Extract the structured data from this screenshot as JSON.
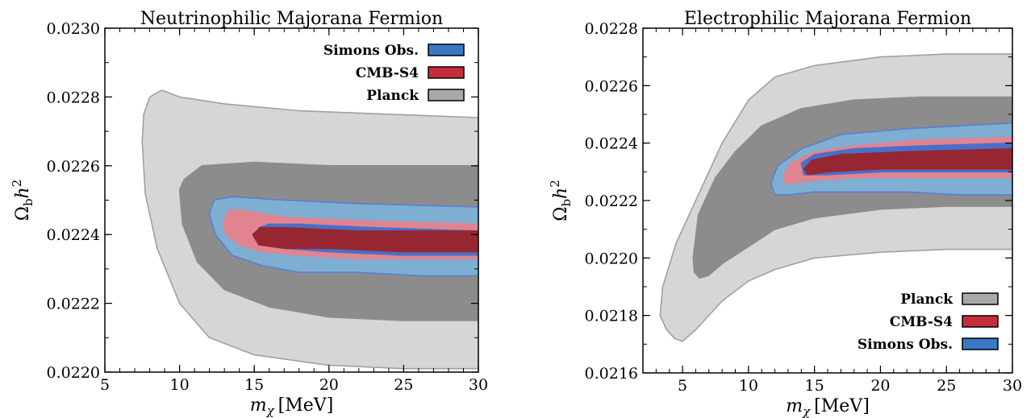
{
  "chart_data": [
    {
      "type": "contour",
      "title": "Neutrinophilic Majorana Fermion",
      "xlabel_var": "m",
      "xlabel_sub": "χ",
      "xlabel_unit": "[MeV]",
      "ylabel_main": "Ω",
      "ylabel_sub": "b",
      "ylabel_h": "h",
      "ylabel_sup": "2",
      "xlim": [
        5,
        30
      ],
      "ylim": [
        0.022,
        0.023
      ],
      "xticks": [
        5,
        10,
        15,
        20,
        25,
        30
      ],
      "xtick_labels": [
        "5",
        "10",
        "15",
        "20",
        "25",
        "30"
      ],
      "yticks": [
        0.022,
        0.0222,
        0.0224,
        0.0226,
        0.0228,
        0.023
      ],
      "ytick_labels": [
        "0.0220",
        "0.0222",
        "0.0224",
        "0.0226",
        "0.0228",
        "0.0230"
      ],
      "legend_position": "top-right",
      "legend": [
        {
          "label": "Simons Obs.",
          "color": "#3a78c2"
        },
        {
          "label": "CMB-S4",
          "color": "#c42d3a"
        },
        {
          "label": "Planck",
          "color": "#a8a8a8"
        }
      ],
      "contours": [
        {
          "series": "Planck",
          "level": "95%",
          "fill": "#d6d6d6",
          "stroke": "#a0a0a0",
          "points": [
            [
              7.5,
              0.02267
            ],
            [
              7.6,
              0.02275
            ],
            [
              8.0,
              0.0228
            ],
            [
              8.8,
              0.02282
            ],
            [
              10,
              0.0228
            ],
            [
              13,
              0.02278
            ],
            [
              18,
              0.02276
            ],
            [
              24,
              0.02275
            ],
            [
              30,
              0.02274
            ],
            [
              30,
              0.02201
            ],
            [
              25,
              0.02201
            ],
            [
              20,
              0.02202
            ],
            [
              15,
              0.02205
            ],
            [
              12,
              0.0221
            ],
            [
              10,
              0.0222
            ],
            [
              8.5,
              0.02236
            ],
            [
              7.7,
              0.02252
            ]
          ]
        },
        {
          "series": "Planck",
          "level": "68%",
          "fill": "#8c8c8c",
          "stroke": "#8c8c8c",
          "points": [
            [
              10.0,
              0.02253
            ],
            [
              10.3,
              0.02256
            ],
            [
              11.5,
              0.0226
            ],
            [
              15,
              0.02261
            ],
            [
              20,
              0.0226
            ],
            [
              25,
              0.0226
            ],
            [
              30,
              0.0226
            ],
            [
              30,
              0.02215
            ],
            [
              25,
              0.02215
            ],
            [
              20,
              0.02216
            ],
            [
              16,
              0.02219
            ],
            [
              13,
              0.02224
            ],
            [
              11.2,
              0.02232
            ],
            [
              10.2,
              0.02243
            ]
          ]
        },
        {
          "series": "Simons Obs.",
          "level": "95%",
          "fill": "#7eafd2",
          "stroke": "#5a7fd0",
          "points": [
            [
              12.0,
              0.02246
            ],
            [
              12.3,
              0.0225
            ],
            [
              13.5,
              0.02251
            ],
            [
              17,
              0.0225
            ],
            [
              22,
              0.02249
            ],
            [
              30,
              0.02248
            ],
            [
              30,
              0.02228
            ],
            [
              26,
              0.02228
            ],
            [
              22,
              0.02229
            ],
            [
              18,
              0.02229
            ],
            [
              15.5,
              0.02231
            ],
            [
              13.5,
              0.02234
            ],
            [
              12.4,
              0.0224
            ]
          ]
        },
        {
          "series": "CMB-S4",
          "level": "95%",
          "fill": "#e18490",
          "stroke": "#e18490",
          "points": [
            [
              12.9,
              0.02243
            ],
            [
              13.3,
              0.02247
            ],
            [
              14.2,
              0.02247
            ],
            [
              17,
              0.02245
            ],
            [
              22,
              0.02244
            ],
            [
              30,
              0.02243
            ],
            [
              30,
              0.02233
            ],
            [
              26,
              0.02233
            ],
            [
              22,
              0.02233
            ],
            [
              18,
              0.02234
            ],
            [
              15.5,
              0.02235
            ],
            [
              14,
              0.02237
            ],
            [
              13.1,
              0.0224
            ]
          ]
        },
        {
          "series": "Simons Obs.",
          "level": "68%",
          "fill": "#4a6fc8",
          "stroke": "#4a6fc8",
          "points": [
            [
              15.3,
              0.02242
            ],
            [
              16,
              0.02243
            ],
            [
              18,
              0.02243
            ],
            [
              23,
              0.02242
            ],
            [
              30,
              0.02241
            ],
            [
              30,
              0.02234
            ],
            [
              25,
              0.02234
            ],
            [
              20,
              0.02235
            ],
            [
              17,
              0.02236
            ],
            [
              15.6,
              0.02238
            ]
          ]
        },
        {
          "series": "CMB-S4",
          "level": "68%",
          "fill": "#962631",
          "stroke": "#962631",
          "points": [
            [
              14.9,
              0.0224
            ],
            [
              15.4,
              0.02242
            ],
            [
              17,
              0.02242
            ],
            [
              22,
              0.02241
            ],
            [
              30,
              0.02241
            ],
            [
              30,
              0.02235
            ],
            [
              25,
              0.02235
            ],
            [
              20,
              0.02236
            ],
            [
              17,
              0.02236
            ],
            [
              15.3,
              0.02237
            ]
          ]
        }
      ]
    },
    {
      "type": "contour",
      "title": "Electrophilic Majorana Fermion",
      "xlabel_var": "m",
      "xlabel_sub": "χ",
      "xlabel_unit": "[MeV]",
      "ylabel_main": "Ω",
      "ylabel_sub": "b",
      "ylabel_h": "h",
      "ylabel_sup": "2",
      "xlim": [
        2,
        30
      ],
      "ylim": [
        0.0216,
        0.0228
      ],
      "xticks": [
        5,
        10,
        15,
        20,
        25,
        30
      ],
      "xtick_labels": [
        "5",
        "10",
        "15",
        "20",
        "25",
        "30"
      ],
      "yticks": [
        0.0216,
        0.0218,
        0.022,
        0.0222,
        0.0224,
        0.0226,
        0.0228
      ],
      "ytick_labels": [
        "0.0216",
        "0.0218",
        "0.0220",
        "0.0222",
        "0.0224",
        "0.0226",
        "0.0228"
      ],
      "legend_position": "bottom-right",
      "legend": [
        {
          "label": "Planck",
          "color": "#a8a8a8"
        },
        {
          "label": "CMB-S4",
          "color": "#c42d3a"
        },
        {
          "label": "Simons Obs.",
          "color": "#3a78c2"
        }
      ],
      "contours": [
        {
          "series": "Planck",
          "level": "95%",
          "fill": "#d6d6d6",
          "stroke": "#a0a0a0",
          "points": [
            [
              3.3,
              0.0218
            ],
            [
              3.5,
              0.0219
            ],
            [
              4.5,
              0.02205
            ],
            [
              6,
              0.0222
            ],
            [
              8,
              0.0224
            ],
            [
              10,
              0.02255
            ],
            [
              12,
              0.02263
            ],
            [
              15,
              0.02267
            ],
            [
              20,
              0.0227
            ],
            [
              25,
              0.02271
            ],
            [
              30,
              0.02271
            ],
            [
              30,
              0.02203
            ],
            [
              25,
              0.02203
            ],
            [
              20,
              0.02202
            ],
            [
              15,
              0.022
            ],
            [
              12,
              0.02196
            ],
            [
              10,
              0.02192
            ],
            [
              8,
              0.02185
            ],
            [
              6,
              0.02175
            ],
            [
              5,
              0.02171
            ],
            [
              4.4,
              0.02172
            ],
            [
              3.8,
              0.02175
            ]
          ]
        },
        {
          "series": "Planck",
          "level": "68%",
          "fill": "#8c8c8c",
          "stroke": "#8c8c8c",
          "points": [
            [
              5.8,
              0.022
            ],
            [
              6.2,
              0.02215
            ],
            [
              7.5,
              0.02228
            ],
            [
              9,
              0.02237
            ],
            [
              11,
              0.02246
            ],
            [
              14,
              0.02252
            ],
            [
              18,
              0.02255
            ],
            [
              23,
              0.02256
            ],
            [
              30,
              0.02256
            ],
            [
              30,
              0.02218
            ],
            [
              25,
              0.02218
            ],
            [
              20,
              0.02217
            ],
            [
              15,
              0.02214
            ],
            [
              12,
              0.0221
            ],
            [
              10,
              0.02204
            ],
            [
              8,
              0.02198
            ],
            [
              7,
              0.02194
            ],
            [
              6.3,
              0.02193
            ],
            [
              5.9,
              0.02195
            ]
          ]
        },
        {
          "series": "Simons Obs.",
          "level": "95%",
          "fill": "#7eafd2",
          "stroke": "#5a7fd0",
          "points": [
            [
              11.7,
              0.02226
            ],
            [
              12.2,
              0.02232
            ],
            [
              14,
              0.02238
            ],
            [
              17,
              0.02243
            ],
            [
              22,
              0.02245
            ],
            [
              30,
              0.02247
            ],
            [
              30,
              0.02222
            ],
            [
              26,
              0.02222
            ],
            [
              22,
              0.02223
            ],
            [
              18,
              0.02223
            ],
            [
              15,
              0.02223
            ],
            [
              13,
              0.02222
            ],
            [
              12,
              0.02222
            ]
          ]
        },
        {
          "series": "CMB-S4",
          "level": "95%",
          "fill": "#e18490",
          "stroke": "#e18490",
          "points": [
            [
              12.7,
              0.02229
            ],
            [
              13.2,
              0.02233
            ],
            [
              15,
              0.02237
            ],
            [
              18,
              0.02239
            ],
            [
              23,
              0.02241
            ],
            [
              30,
              0.02242
            ],
            [
              30,
              0.02228
            ],
            [
              26,
              0.02228
            ],
            [
              22,
              0.02228
            ],
            [
              18,
              0.02228
            ],
            [
              15,
              0.02227
            ],
            [
              13.3,
              0.02226
            ],
            [
              12.8,
              0.02226
            ]
          ]
        },
        {
          "series": "Simons Obs.",
          "level": "68%",
          "fill": "#4a6fc8",
          "stroke": "#4a6fc8",
          "points": [
            [
              14.0,
              0.02233
            ],
            [
              15,
              0.02236
            ],
            [
              18,
              0.02238
            ],
            [
              23,
              0.02239
            ],
            [
              30,
              0.0224
            ],
            [
              30,
              0.0223
            ],
            [
              25,
              0.0223
            ],
            [
              20,
              0.0223
            ],
            [
              16,
              0.02229
            ],
            [
              14.2,
              0.02229
            ]
          ]
        },
        {
          "series": "CMB-S4",
          "level": "68%",
          "fill": "#962631",
          "stroke": "#962631",
          "points": [
            [
              14.2,
              0.02231
            ],
            [
              14.8,
              0.02234
            ],
            [
              17,
              0.02236
            ],
            [
              22,
              0.02237
            ],
            [
              30,
              0.02238
            ],
            [
              30,
              0.02231
            ],
            [
              25,
              0.02231
            ],
            [
              20,
              0.02231
            ],
            [
              16,
              0.0223
            ],
            [
              14.5,
              0.02229
            ]
          ]
        }
      ]
    }
  ]
}
